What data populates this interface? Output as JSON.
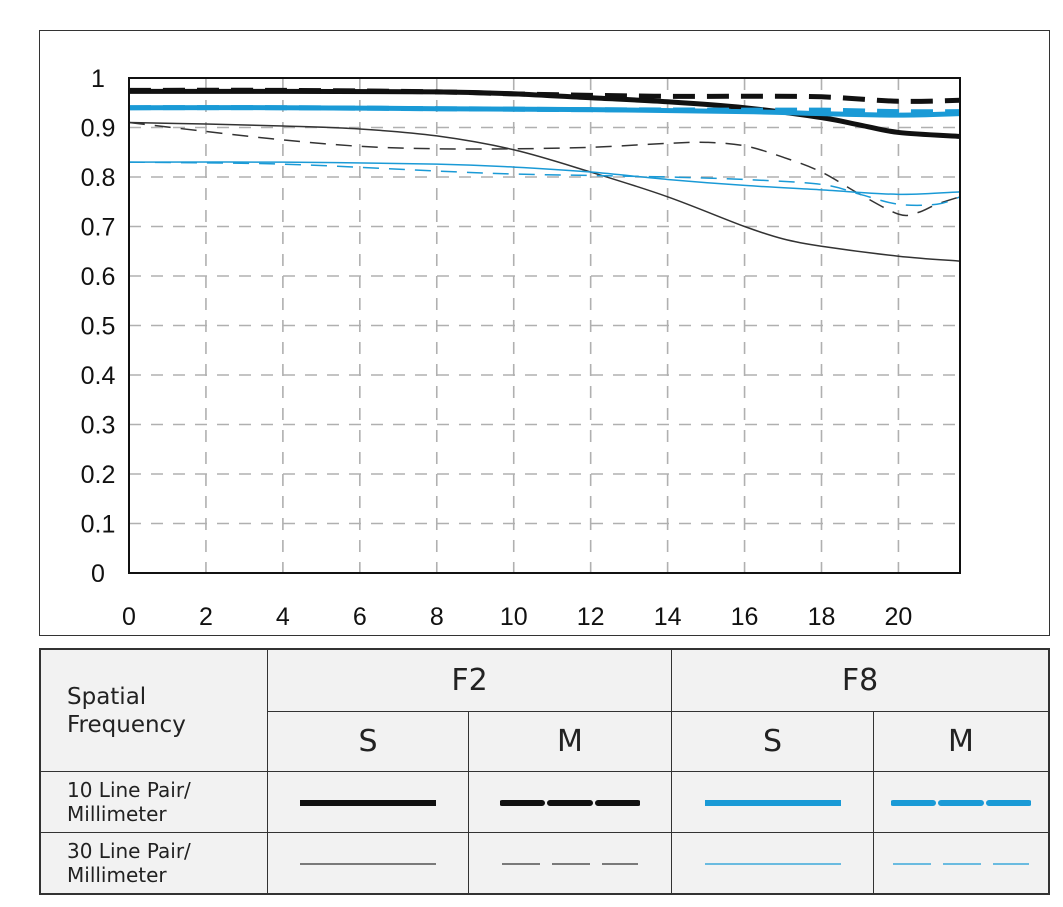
{
  "chart_data": {
    "type": "line",
    "title": "",
    "xlabel": "",
    "ylabel": "",
    "xlim": [
      0,
      21.6
    ],
    "ylim": [
      0,
      1
    ],
    "x_ticks": [
      "0",
      "2",
      "4",
      "6",
      "8",
      "10",
      "12",
      "14",
      "16",
      "18",
      "20"
    ],
    "y_ticks": [
      "0",
      "0.1",
      "0.2",
      "0.3",
      "0.4",
      "0.5",
      "0.6",
      "0.7",
      "0.8",
      "0.9",
      "1"
    ],
    "grid": true,
    "series": [
      {
        "name": "F2 S 10 lp/mm",
        "aperture": "F2",
        "orientation": "S",
        "frequency": "10 Line Pair/ Millimeter",
        "color": "#111111",
        "weight": "thick",
        "dash": "solid",
        "x": [
          0,
          4,
          8,
          10,
          12,
          14,
          16,
          18,
          19,
          20,
          21.6
        ],
        "y": [
          0.973,
          0.973,
          0.972,
          0.968,
          0.96,
          0.952,
          0.94,
          0.92,
          0.905,
          0.89,
          0.882
        ]
      },
      {
        "name": "F2 M 10 lp/mm",
        "aperture": "F2",
        "orientation": "M",
        "frequency": "10 Line Pair/ Millimeter",
        "color": "#111111",
        "weight": "thick",
        "dash": "dashed",
        "x": [
          0,
          4,
          8,
          10,
          12,
          14,
          16,
          18,
          20,
          21.6
        ],
        "y": [
          0.975,
          0.975,
          0.972,
          0.968,
          0.965,
          0.963,
          0.963,
          0.962,
          0.953,
          0.955
        ]
      },
      {
        "name": "F8 S 10 lp/mm",
        "aperture": "F8",
        "orientation": "S",
        "frequency": "10 Line Pair/ Millimeter",
        "color": "#1a9ad6",
        "weight": "thick",
        "dash": "solid",
        "x": [
          0,
          4,
          8,
          12,
          16,
          18,
          20,
          21.6
        ],
        "y": [
          0.94,
          0.94,
          0.938,
          0.936,
          0.932,
          0.928,
          0.925,
          0.928
        ]
      },
      {
        "name": "F8 M 10 lp/mm",
        "aperture": "F8",
        "orientation": "M",
        "frequency": "10 Line Pair/ Millimeter",
        "color": "#1a9ad6",
        "weight": "thick",
        "dash": "dashed",
        "x": [
          0,
          4,
          8,
          12,
          16,
          18,
          20,
          21.6
        ],
        "y": [
          0.94,
          0.94,
          0.938,
          0.936,
          0.935,
          0.935,
          0.932,
          0.932
        ]
      },
      {
        "name": "F2 S 30 lp/mm",
        "aperture": "F2",
        "orientation": "S",
        "frequency": "30 Line Pair/ Millimeter",
        "color": "#333333",
        "weight": "thin",
        "dash": "solid",
        "x": [
          0,
          2,
          4,
          6,
          8,
          10,
          12,
          14,
          16,
          17,
          18,
          20,
          21.6
        ],
        "y": [
          0.91,
          0.907,
          0.903,
          0.897,
          0.883,
          0.855,
          0.81,
          0.76,
          0.7,
          0.675,
          0.66,
          0.64,
          0.63
        ]
      },
      {
        "name": "F2 M 30 lp/mm",
        "aperture": "F2",
        "orientation": "M",
        "frequency": "30 Line Pair/ Millimeter",
        "color": "#333333",
        "weight": "thin",
        "dash": "dashed",
        "x": [
          0,
          2,
          4,
          6,
          8,
          10,
          12,
          14,
          15,
          16,
          17,
          18,
          19,
          20,
          20.5,
          21,
          21.6
        ],
        "y": [
          0.91,
          0.892,
          0.875,
          0.862,
          0.857,
          0.857,
          0.86,
          0.868,
          0.87,
          0.863,
          0.84,
          0.81,
          0.765,
          0.725,
          0.728,
          0.745,
          0.76
        ]
      },
      {
        "name": "F8 S 30 lp/mm",
        "aperture": "F8",
        "orientation": "S",
        "frequency": "30 Line Pair/ Millimeter",
        "color": "#1a9ad6",
        "weight": "thin",
        "dash": "solid",
        "x": [
          0,
          4,
          8,
          10,
          12,
          14,
          16,
          18,
          20,
          21.6
        ],
        "y": [
          0.83,
          0.83,
          0.826,
          0.82,
          0.81,
          0.795,
          0.783,
          0.774,
          0.765,
          0.77
        ]
      },
      {
        "name": "F8 M 30 lp/mm",
        "aperture": "F8",
        "orientation": "M",
        "frequency": "30 Line Pair/ Millimeter",
        "color": "#1a9ad6",
        "weight": "thin",
        "dash": "dashed",
        "x": [
          0,
          4,
          8,
          10,
          12,
          14,
          16,
          18,
          19,
          20,
          21,
          21.6
        ],
        "y": [
          0.83,
          0.826,
          0.812,
          0.806,
          0.803,
          0.8,
          0.795,
          0.785,
          0.765,
          0.745,
          0.745,
          0.76
        ]
      }
    ]
  },
  "legend": {
    "row_header": "Spatial Frequency",
    "apertures": [
      "F2",
      "F8"
    ],
    "orientations": [
      "S",
      "M",
      "S",
      "M"
    ],
    "rows": [
      "10 Line Pair/ Millimeter",
      "30 Line Pair/ Millimeter"
    ]
  },
  "colors": {
    "black": "#111111",
    "blue": "#1a9ad6",
    "grid": "#b0b0b0"
  }
}
